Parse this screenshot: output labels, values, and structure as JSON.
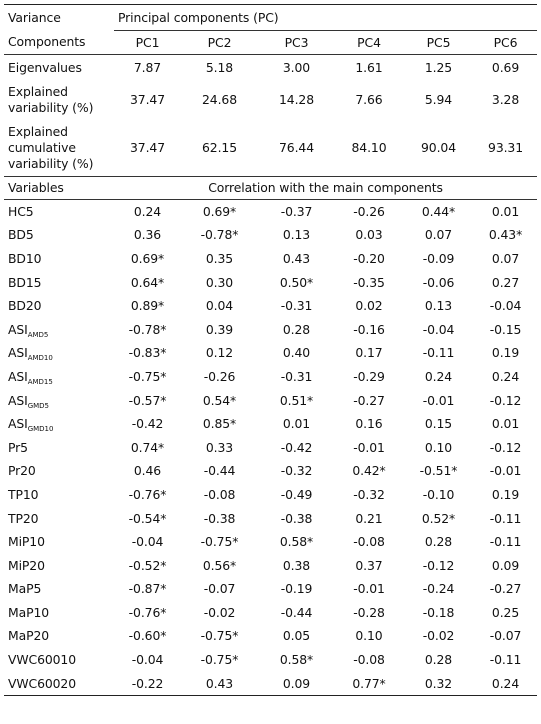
{
  "table": {
    "corner_label_line1": "Variance",
    "corner_label_line2": "Components",
    "pc_group_header": "Principal components (PC)",
    "pc_headers": [
      "PC1",
      "PC2",
      "PC3",
      "PC4",
      "PC5",
      "PC6"
    ],
    "variance_rows": [
      {
        "label_lines": [
          "Eigenvalues"
        ],
        "values": [
          "7.87",
          "5.18",
          "3.00",
          "1.61",
          "1.25",
          "0.69"
        ]
      },
      {
        "label_lines": [
          "Explained",
          "variability (%)"
        ],
        "values": [
          "37.47",
          "24.68",
          "14.28",
          "7.66",
          "5.94",
          "3.28"
        ]
      },
      {
        "label_lines": [
          "Explained",
          "cumulative",
          "variability (%)"
        ],
        "values": [
          "37.47",
          "62.15",
          "76.44",
          "84.10",
          "90.04",
          "93.31"
        ]
      }
    ],
    "variables_label": "Variables",
    "correlation_header": "Correlation with the main components",
    "variable_rows": [
      {
        "name": "HC5",
        "sub": "",
        "values": [
          "0.24",
          "0.69*",
          "-0.37",
          "-0.26",
          "0.44*",
          "0.01"
        ]
      },
      {
        "name": "BD5",
        "sub": "",
        "values": [
          "0.36",
          "-0.78*",
          "0.13",
          "0.03",
          "0.07",
          "0.43*"
        ]
      },
      {
        "name": "BD10",
        "sub": "",
        "values": [
          "0.69*",
          "0.35",
          "0.43",
          "-0.20",
          "-0.09",
          "0.07"
        ]
      },
      {
        "name": "BD15",
        "sub": "",
        "values": [
          "0.64*",
          "0.30",
          "0.50*",
          "-0.35",
          "-0.06",
          "0.27"
        ]
      },
      {
        "name": "BD20",
        "sub": "",
        "values": [
          "0.89*",
          "0.04",
          "-0.31",
          "0.02",
          "0.13",
          "-0.04"
        ]
      },
      {
        "name": "ASI",
        "sub": "AMD5",
        "values": [
          "-0.78*",
          "0.39",
          "0.28",
          "-0.16",
          "-0.04",
          "-0.15"
        ]
      },
      {
        "name": "ASI",
        "sub": "AMD10",
        "values": [
          "-0.83*",
          "0.12",
          "0.40",
          "0.17",
          "-0.11",
          "0.19"
        ]
      },
      {
        "name": "ASI",
        "sub": "AMD15",
        "values": [
          "-0.75*",
          "-0.26",
          "-0.31",
          "-0.29",
          "0.24",
          "0.24"
        ]
      },
      {
        "name": "ASI",
        "sub": "GMD5",
        "values": [
          "-0.57*",
          "0.54*",
          "0.51*",
          "-0.27",
          "-0.01",
          "-0.12"
        ]
      },
      {
        "name": "ASI",
        "sub": "GMD10",
        "values": [
          "-0.42",
          "0.85*",
          "0.01",
          "0.16",
          "0.15",
          "0.01"
        ]
      },
      {
        "name": "Pr5",
        "sub": "",
        "values": [
          "0.74*",
          "0.33",
          "-0.42",
          "-0.01",
          "0.10",
          "-0.12"
        ]
      },
      {
        "name": "Pr20",
        "sub": "",
        "values": [
          "0.46",
          "-0.44",
          "-0.32",
          "0.42*",
          "-0.51*",
          "-0.01"
        ]
      },
      {
        "name": "TP10",
        "sub": "",
        "values": [
          "-0.76*",
          "-0.08",
          "-0.49",
          "-0.32",
          "-0.10",
          "0.19"
        ]
      },
      {
        "name": "TP20",
        "sub": "",
        "values": [
          "-0.54*",
          "-0.38",
          "-0.38",
          "0.21",
          "0.52*",
          "-0.11"
        ]
      },
      {
        "name": "MiP10",
        "sub": "",
        "values": [
          "-0.04",
          "-0.75*",
          "0.58*",
          "-0.08",
          "0.28",
          "-0.11"
        ]
      },
      {
        "name": "MiP20",
        "sub": "",
        "values": [
          "-0.52*",
          "0.56*",
          "0.38",
          "0.37",
          "-0.12",
          "0.09"
        ]
      },
      {
        "name": "MaP5",
        "sub": "",
        "values": [
          "-0.87*",
          "-0.07",
          "-0.19",
          "-0.01",
          "-0.24",
          "-0.27"
        ]
      },
      {
        "name": "MaP10",
        "sub": "",
        "values": [
          "-0.76*",
          "-0.02",
          "-0.44",
          "-0.28",
          "-0.18",
          "0.25"
        ]
      },
      {
        "name": "MaP20",
        "sub": "",
        "values": [
          "-0.60*",
          "-0.75*",
          "0.05",
          "0.10",
          "-0.02",
          "-0.07"
        ]
      },
      {
        "name": "VWC60010",
        "sub": "",
        "values": [
          "-0.04",
          "-0.75*",
          "0.58*",
          "-0.08",
          "0.28",
          "-0.11"
        ]
      },
      {
        "name": "VWC60020",
        "sub": "",
        "values": [
          "-0.22",
          "0.43",
          "0.09",
          "0.77*",
          "0.32",
          "0.24"
        ]
      }
    ]
  }
}
